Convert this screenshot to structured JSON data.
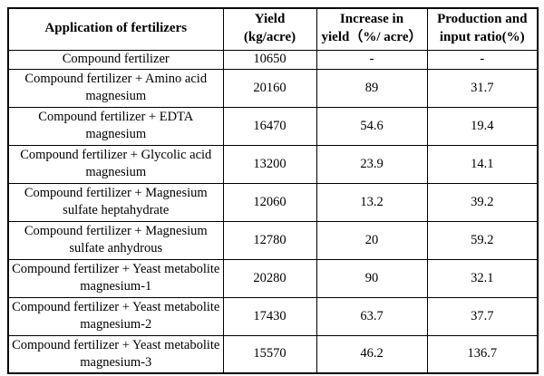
{
  "table": {
    "headers": [
      {
        "line1": "Application of fertilizers",
        "line2": ""
      },
      {
        "line1": "Yield",
        "line2": "(kg/acre)"
      },
      {
        "line1": "Increase in",
        "line2": "yield（%/ acre）"
      },
      {
        "line1": "Production and",
        "line2": "input ratio(%)"
      }
    ],
    "rows": [
      [
        "Compound fertilizer",
        "10650",
        "-",
        "-"
      ],
      [
        "Compound fertilizer + Amino acid magnesium",
        "20160",
        "89",
        "31.7"
      ],
      [
        "Compound fertilizer + EDTA magnesium",
        "16470",
        "54.6",
        "19.4"
      ],
      [
        "Compound fertilizer + Glycolic acid magnesium",
        "13200",
        "23.9",
        "14.1"
      ],
      [
        "Compound fertilizer + Magnesium sulfate heptahydrate",
        "12060",
        "13.2",
        "39.2"
      ],
      [
        "Compound fertilizer + Magnesium sulfate anhydrous",
        "12780",
        "20",
        "59.2"
      ],
      [
        "Compound fertilizer + Yeast metabolite magnesium-1",
        "20280",
        "90",
        "32.1"
      ],
      [
        "Compound fertilizer + Yeast metabolite magnesium-2",
        "17430",
        "63.7",
        "37.7"
      ],
      [
        "Compound fertilizer + Yeast metabolite magnesium-3",
        "15570",
        "46.2",
        "136.7"
      ]
    ]
  }
}
